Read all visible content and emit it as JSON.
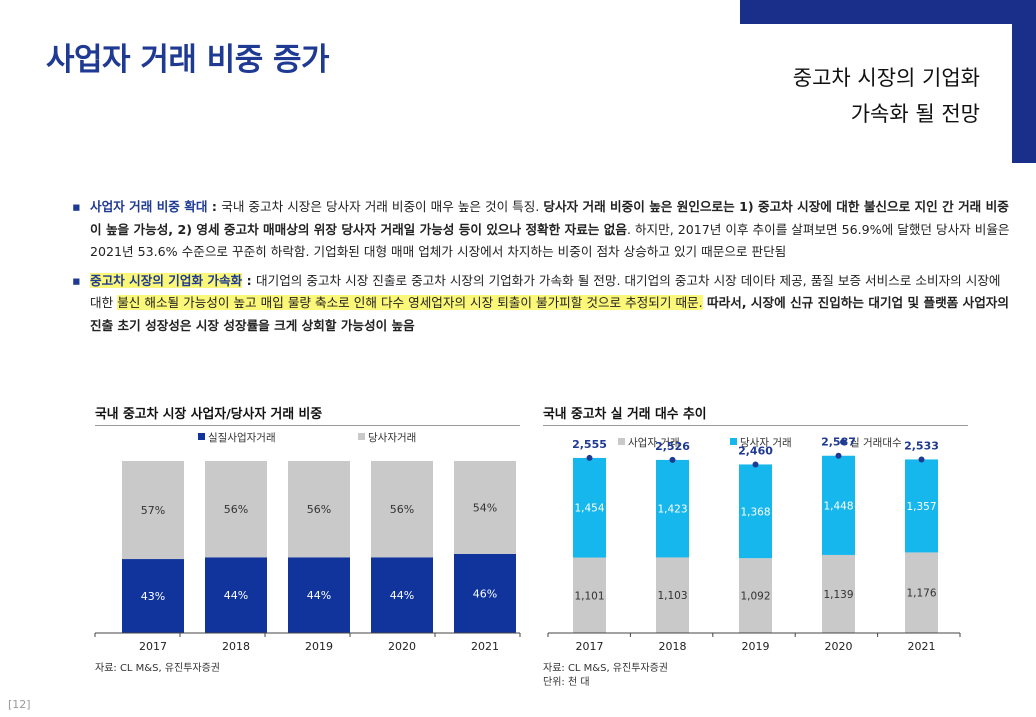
{
  "page": {
    "title": "사업자 거래 비중 증가",
    "subtitle_line1": "중고차 시장의 기업화",
    "subtitle_line2": "가속화 될 전망",
    "page_number": "[12]"
  },
  "bullets": [
    {
      "heading": "사업자 거래 비중 확대",
      "sep": " : ",
      "text1": "국내 중고차 시장은 당사자 거래 비중이 매우 높은 것이 특징. ",
      "bold1": "당사자 거래 비중이 높은 원인으로는 1) 중고차 시장에 대한 불신으로 지인 간 거래 비중이 높을 가능성, 2) 영세 중고차 매매상의 위장 당사자 거래일 가능성 등이 있으나 정확한 자료는 없음",
      "text2": ". 하지만, 2017년 이후 추이를 살펴보면 56.9%에 달했던 당사자 비율은 2021년 53.6% 수준으로 꾸준히 하락함. 기업화된 대형 매매 업체가 시장에서 차지하는 비중이 점차 상승하고 있기 때문으로 판단됨"
    },
    {
      "heading": "중고차 시장의 기업화 가속화",
      "sep": " : ",
      "text1": "대기업의 중고차 시장 진출로 중고차 시장의 기업화가 가속화 될 전망. 대기업의 중고차 시장 데이타 제공, 품질 보증 서비스로 소비자의 시장에 대한 ",
      "highlight": "불신 해소될 가능성이 높고 매입 물량 축소로 인해 다수 영세업자의 시장 퇴출이 불가피할 것으로 추정되기 때문.",
      "bold1": " 따라서, 시장에 신규 진입하는 대기업 및 플랫폼 사업자의 진출 초기 성장성은 시장 성장률을 크게 상회할 가능성이 높음"
    }
  ],
  "chart_data": [
    {
      "type": "bar",
      "stacked": true,
      "percent": true,
      "title": "국내 중고차 시장 사업자/당사자 거래 비중",
      "categories": [
        "2017",
        "2018",
        "2019",
        "2020",
        "2021"
      ],
      "series": [
        {
          "name": "실질사업자거래",
          "values": [
            43,
            44,
            44,
            44,
            46
          ],
          "labels": [
            "43%",
            "44%",
            "44%",
            "44%",
            "46%"
          ],
          "color": "#10349c"
        },
        {
          "name": "당사자거래",
          "values": [
            57,
            56,
            56,
            56,
            54
          ],
          "labels": [
            "57%",
            "56%",
            "56%",
            "56%",
            "54%"
          ],
          "color": "#c9c9c9"
        }
      ],
      "ylim": [
        0,
        100
      ],
      "source": "자료: CL M&S, 유진투자증권"
    },
    {
      "type": "bar",
      "stacked": true,
      "title": "국내 중고차 실 거래 대수 추이",
      "categories": [
        "2017",
        "2018",
        "2019",
        "2020",
        "2021"
      ],
      "series": [
        {
          "name": "사업자 거래",
          "values": [
            1101,
            1103,
            1092,
            1139,
            1176
          ],
          "labels": [
            "1,101",
            "1,103",
            "1,092",
            "1,139",
            "1,176"
          ],
          "color": "#c9c9c9"
        },
        {
          "name": "당사자 거래",
          "values": [
            1454,
            1423,
            1368,
            1448,
            1357
          ],
          "labels": [
            "1,454",
            "1,423",
            "1,368",
            "1,448",
            "1,357"
          ],
          "color": "#16b7ec"
        }
      ],
      "total": {
        "name": "실 거래대수",
        "values": [
          2555,
          2526,
          2460,
          2587,
          2533
        ],
        "labels": [
          "2,555",
          "2,526",
          "2,460",
          "2,587",
          "2,533"
        ],
        "color": "#1f3a93"
      },
      "ylim": [
        0,
        2700
      ],
      "source": "자료: CL M&S, 유진투자증권",
      "unit": "단위: 천 대"
    }
  ],
  "colors": {
    "brand": "#1a2f8a",
    "title": "#1f3a93",
    "highlight": "#fbf778"
  }
}
